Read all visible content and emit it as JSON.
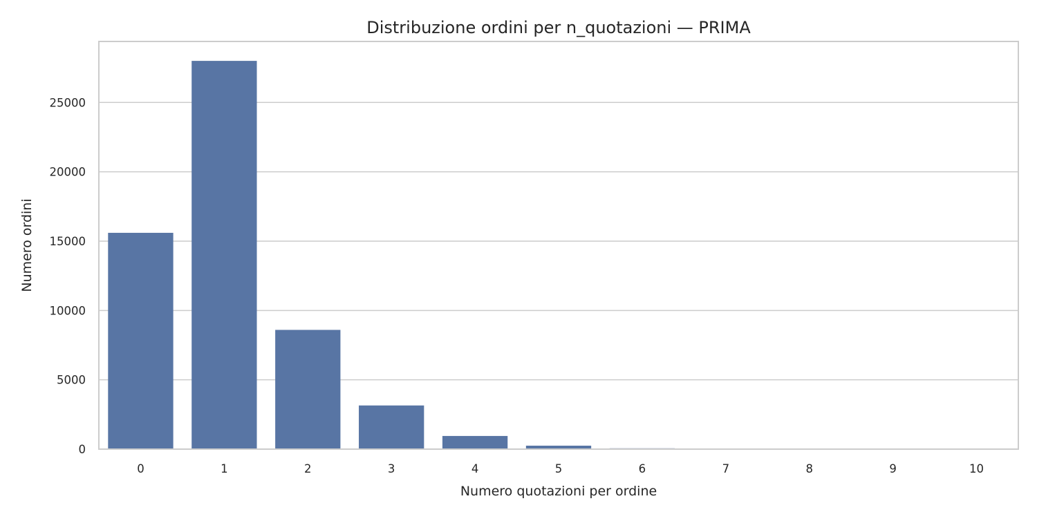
{
  "chart_data": {
    "type": "bar",
    "title": "Distribuzione ordini per n_quotazioni — PRIMA",
    "xlabel": "Numero quotazioni per ordine",
    "ylabel": "Numero ordini",
    "categories": [
      "0",
      "1",
      "2",
      "3",
      "4",
      "5",
      "6",
      "7",
      "8",
      "9",
      "10"
    ],
    "values": [
      15600,
      28000,
      8600,
      3150,
      950,
      250,
      60,
      25,
      15,
      8,
      5
    ],
    "ylim": [
      0,
      29400
    ],
    "yticks": [
      0,
      5000,
      10000,
      15000,
      20000,
      25000
    ],
    "ytick_labels": [
      "0",
      "5000",
      "10000",
      "15000",
      "20000",
      "25000"
    ],
    "grid": "horizontal",
    "bar_color": "#5875a4",
    "grid_color": "#cccccc",
    "frame_color": "#cccccc"
  }
}
